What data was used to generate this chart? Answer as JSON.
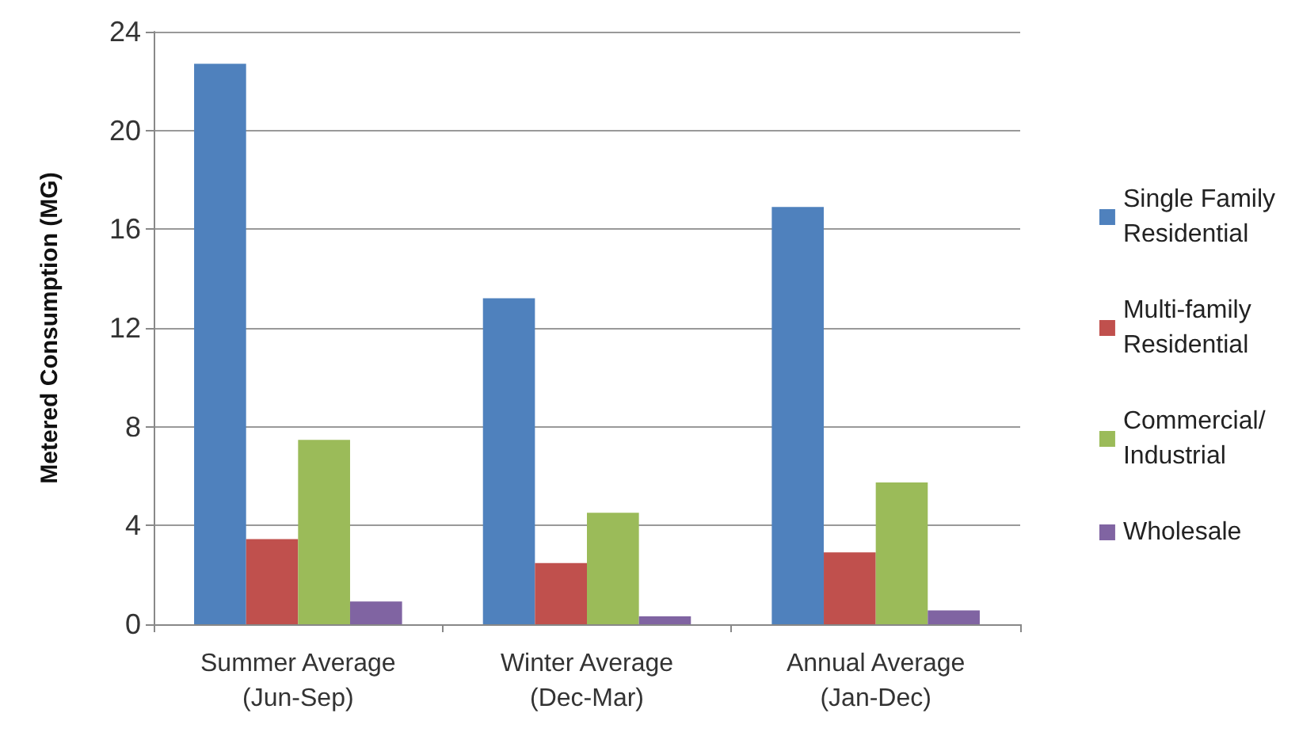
{
  "chart_data": {
    "type": "bar",
    "ylabel": "Metered Consumption (MG)",
    "categories": [
      "Summer Average\n(Jun-Sep)",
      "Winter Average\n(Dec-Mar)",
      "Annual Average\n(Jan-Dec)"
    ],
    "series": [
      {
        "name": "Single Family\nResidential",
        "color": "#4f81bd",
        "values": [
          22.7,
          13.2,
          16.9
        ]
      },
      {
        "name": "Multi-family\nResidential",
        "color": "#c0504d",
        "values": [
          3.45,
          2.48,
          2.91
        ]
      },
      {
        "name": "Commercial/\nIndustrial",
        "color": "#9bbb59",
        "values": [
          7.47,
          4.52,
          5.74
        ]
      },
      {
        "name": "Wholesale",
        "color": "#8064a2",
        "values": [
          0.92,
          0.32,
          0.56
        ]
      }
    ],
    "ylim": [
      0,
      24
    ],
    "yticks": [
      0,
      4,
      8,
      12,
      16,
      20,
      24
    ],
    "grid": "y",
    "legend": "right"
  }
}
